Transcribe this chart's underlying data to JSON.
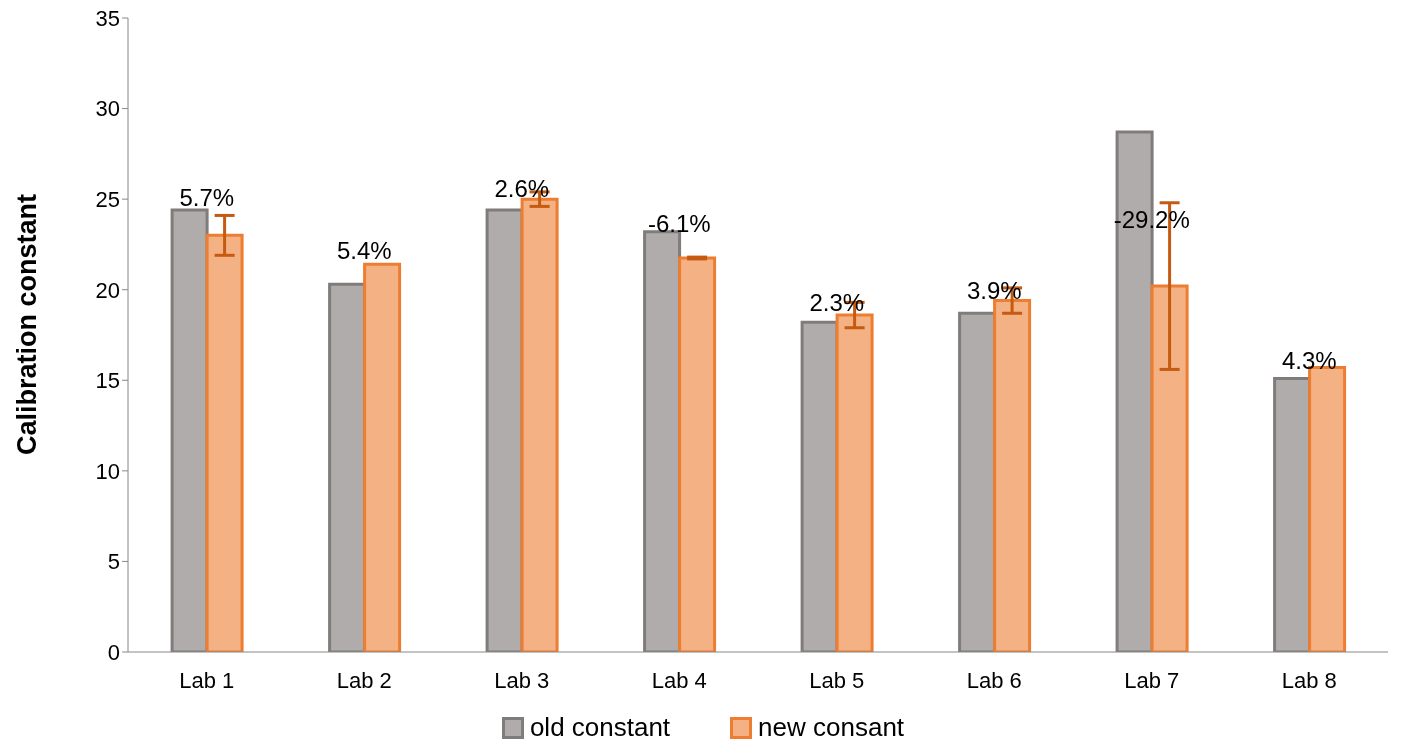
{
  "chart_data": {
    "type": "bar",
    "ylabel": "Calibration constant",
    "categories": [
      "Lab 1",
      "Lab 2",
      "Lab 3",
      "Lab 4",
      "Lab 5",
      "Lab 6",
      "Lab 7",
      "Lab 8"
    ],
    "series": [
      {
        "name": "old constant",
        "color": "#b0acab",
        "values": [
          24.4,
          20.3,
          24.4,
          23.2,
          18.2,
          18.7,
          28.7,
          15.1
        ]
      },
      {
        "name": "new consant",
        "color": "#f4b183",
        "values": [
          23.0,
          21.4,
          25.0,
          21.75,
          18.6,
          19.4,
          20.2,
          15.7
        ],
        "errors": [
          1.1,
          null,
          0.4,
          0.05,
          0.7,
          0.7,
          4.6,
          null
        ]
      }
    ],
    "annotations": [
      {
        "text": "5.7%",
        "x": "Lab 1",
        "y": 24.5
      },
      {
        "text": "5.4%",
        "x": "Lab 2",
        "y": 21.6
      },
      {
        "text": "2.6%",
        "x": "Lab 3",
        "y": 25.0
      },
      {
        "text": "-6.1%",
        "x": "Lab 4",
        "y": 23.1
      },
      {
        "text": "2.3%",
        "x": "Lab 5",
        "y": 18.7
      },
      {
        "text": "3.9%",
        "x": "Lab 6",
        "y": 19.4
      },
      {
        "text": "-29.2%",
        "x": "Lab 7",
        "y": 23.3
      },
      {
        "text": "4.3%",
        "x": "Lab 8",
        "y": 15.5
      }
    ],
    "ylim": [
      0,
      35
    ],
    "yticks": [
      0,
      5,
      10,
      15,
      20,
      25,
      30,
      35
    ],
    "legend": "bottom"
  }
}
